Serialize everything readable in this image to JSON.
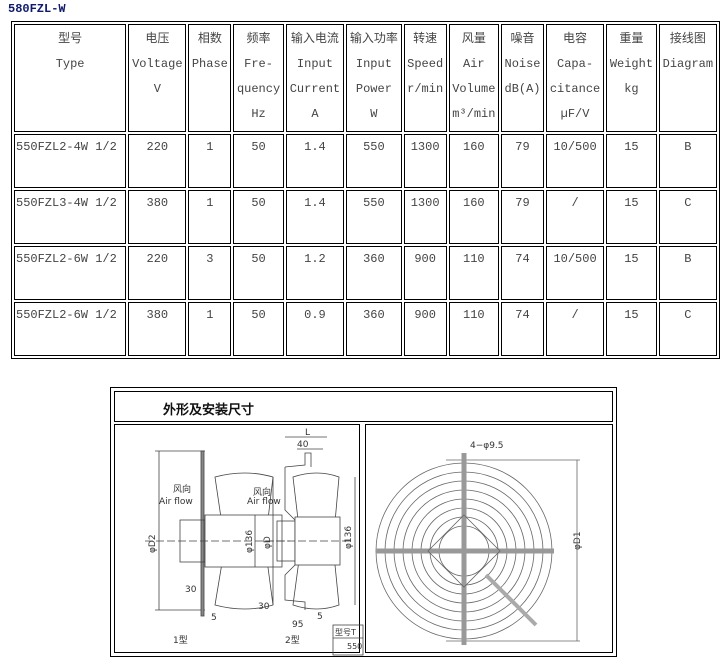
{
  "title": "580FZL-W",
  "headers": [
    {
      "cn": "型号",
      "en": [
        "Type"
      ]
    },
    {
      "cn": "电压",
      "en": [
        "Voltage",
        "V"
      ]
    },
    {
      "cn": "相数",
      "en": [
        "Phase"
      ]
    },
    {
      "cn": "频率",
      "en": [
        "Fre-",
        "quency",
        "Hz"
      ]
    },
    {
      "cn": "输入电流",
      "en": [
        "Input",
        "Current",
        "A"
      ]
    },
    {
      "cn": "输入功率",
      "en": [
        "Input",
        "Power",
        "W"
      ]
    },
    {
      "cn": "转速",
      "en": [
        "Speed",
        "r/min"
      ]
    },
    {
      "cn": "风量",
      "en": [
        "Air",
        "Volume",
        "m³/min"
      ]
    },
    {
      "cn": "噪音",
      "en": [
        "Noise",
        "dB(A)"
      ]
    },
    {
      "cn": "电容",
      "en": [
        "Capa-",
        "citance",
        "µF/V"
      ]
    },
    {
      "cn": "重量",
      "en": [
        "Weight",
        "kg"
      ]
    },
    {
      "cn": "接线图",
      "en": [
        "Diagram"
      ]
    }
  ],
  "rows": [
    [
      "550FZL2-4W 1/2",
      "220",
      "1",
      "50",
      "1.4",
      "550",
      "1300",
      "160",
      "79",
      "10/500",
      "15",
      "B"
    ],
    [
      "550FZL3-4W 1/2",
      "380",
      "1",
      "50",
      "1.4",
      "550",
      "1300",
      "160",
      "79",
      "/",
      "15",
      "C"
    ],
    [
      "550FZL2-6W 1/2",
      "220",
      "3",
      "50",
      "1.2",
      "360",
      "900",
      "110",
      "74",
      "10/500",
      "15",
      "B"
    ],
    [
      "550FZL2-6W 1/2",
      "380",
      "1",
      "50",
      "0.9",
      "360",
      "900",
      "110",
      "74",
      "/",
      "15",
      "C"
    ]
  ],
  "drawing": {
    "title": "外形及安装尺寸",
    "airflow_cn": "风向",
    "airflow_en": "Air flow",
    "d2": "φD2",
    "d": "φD",
    "d136": "φ136",
    "l": "L",
    "dim40": "40",
    "dim30": "30",
    "dim5": "5",
    "dim95": "95",
    "type1": "1型",
    "type2": "2型",
    "model_label": "型号T",
    "model_value": "550",
    "holes": "4−φ9.5",
    "d1": "φD1"
  }
}
